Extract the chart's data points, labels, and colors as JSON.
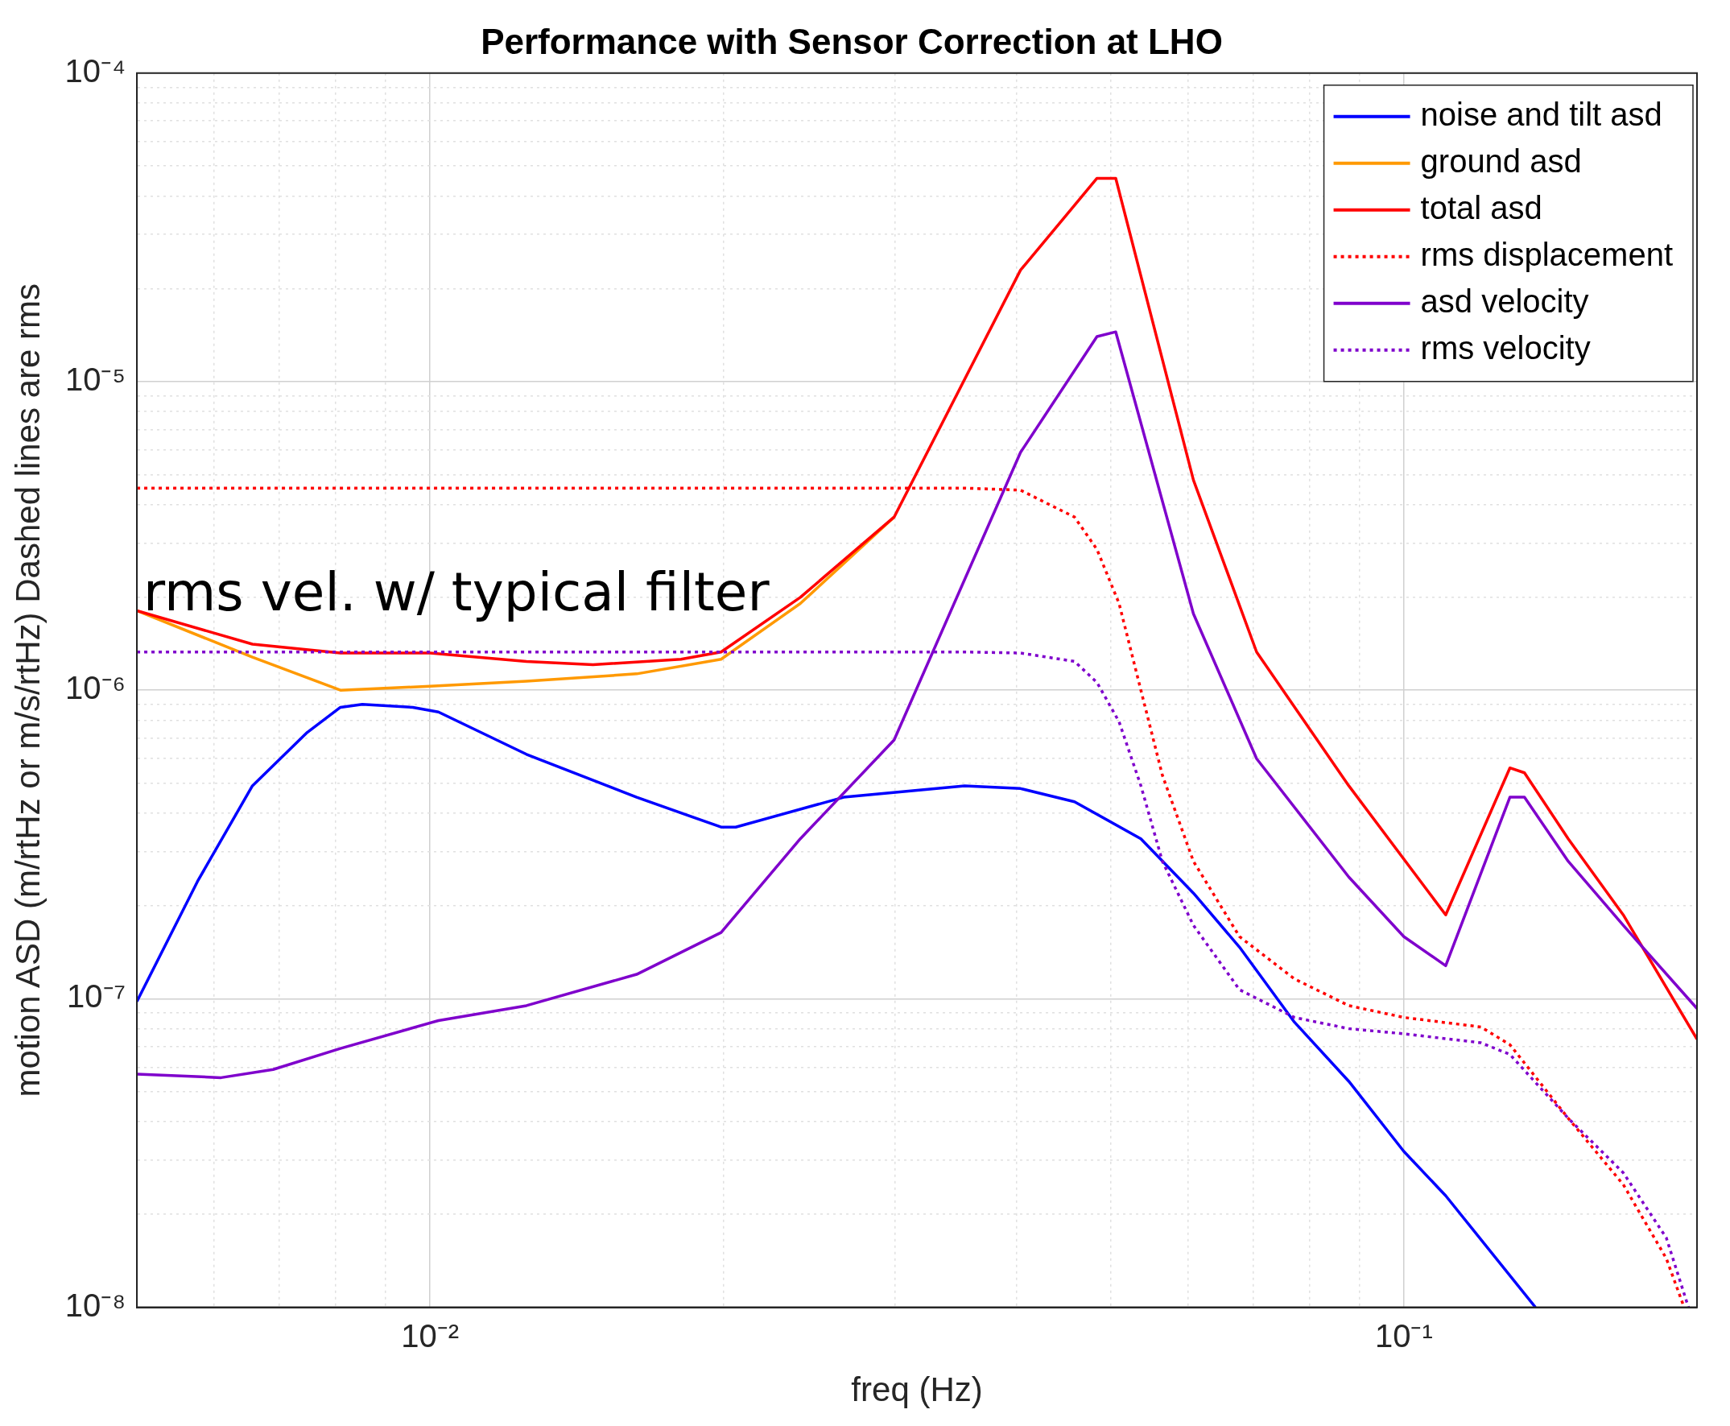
{
  "chart_data": {
    "type": "line",
    "title": "Performance with Sensor Correction at LHO",
    "xlabel": "freq (Hz)",
    "ylabel": "motion ASD (m/rtHz or m/s/rtHz) Dashed lines are rms",
    "annotations": [
      "rms vel. w/ typical filter"
    ],
    "log": "xy",
    "grid": true,
    "legend": "top right",
    "xlim": [
      0.005,
      0.2
    ],
    "ylim": [
      1e-08,
      0.0001
    ],
    "xticks": [
      {
        "value": 0.005,
        "label": null
      },
      {
        "value": 0.006,
        "label": null
      },
      {
        "value": 0.007,
        "label": null
      },
      {
        "value": 0.008,
        "label": null
      },
      {
        "value": 0.009,
        "label": null
      },
      {
        "value": 0.01,
        "label": "10⁻²"
      },
      {
        "value": 0.02,
        "label": null
      },
      {
        "value": 0.03,
        "label": null
      },
      {
        "value": 0.04,
        "label": null
      },
      {
        "value": 0.05,
        "label": null
      },
      {
        "value": 0.06,
        "label": null
      },
      {
        "value": 0.07,
        "label": null
      },
      {
        "value": 0.08,
        "label": null
      },
      {
        "value": 0.09,
        "label": null
      },
      {
        "value": 0.1,
        "label": "10⁻¹"
      },
      {
        "value": 0.2,
        "label": null
      }
    ],
    "yticks": [
      {
        "value": 1e-08,
        "label": "10⁻⁸"
      },
      {
        "value": 2e-08,
        "label": null
      },
      {
        "value": 3e-08,
        "label": null
      },
      {
        "value": 4e-08,
        "label": null
      },
      {
        "value": 5e-08,
        "label": null
      },
      {
        "value": 6e-08,
        "label": null
      },
      {
        "value": 7e-08,
        "label": null
      },
      {
        "value": 8e-08,
        "label": null
      },
      {
        "value": 9e-08,
        "label": null
      },
      {
        "value": 1e-07,
        "label": "10⁻⁷"
      },
      {
        "value": 2e-07,
        "label": null
      },
      {
        "value": 3e-07,
        "label": null
      },
      {
        "value": 4e-07,
        "label": null
      },
      {
        "value": 5e-07,
        "label": null
      },
      {
        "value": 6e-07,
        "label": null
      },
      {
        "value": 7e-07,
        "label": null
      },
      {
        "value": 8e-07,
        "label": null
      },
      {
        "value": 9e-07,
        "label": null
      },
      {
        "value": 1e-06,
        "label": "10⁻⁶"
      },
      {
        "value": 2e-06,
        "label": null
      },
      {
        "value": 3e-06,
        "label": null
      },
      {
        "value": 4e-06,
        "label": null
      },
      {
        "value": 5e-06,
        "label": null
      },
      {
        "value": 6e-06,
        "label": null
      },
      {
        "value": 7e-06,
        "label": null
      },
      {
        "value": 8e-06,
        "label": null
      },
      {
        "value": 9e-06,
        "label": null
      },
      {
        "value": 1e-05,
        "label": "10⁻⁵"
      },
      {
        "value": 2e-05,
        "label": null
      },
      {
        "value": 3e-05,
        "label": null
      },
      {
        "value": 4e-05,
        "label": null
      },
      {
        "value": 5e-05,
        "label": null
      },
      {
        "value": 6e-05,
        "label": null
      },
      {
        "value": 7e-05,
        "label": null
      },
      {
        "value": 8e-05,
        "label": null
      },
      {
        "value": 9e-05,
        "label": null
      },
      {
        "value": 0.0001,
        "label": "10⁻⁴"
      }
    ],
    "series": [
      {
        "name": "noise and tilt asd",
        "color": "#0000ff",
        "line_style": "solid",
        "x": [
          0.005,
          0.00577,
          0.00657,
          0.00748,
          0.00809,
          0.00852,
          0.0096,
          0.0102,
          0.01256,
          0.0163,
          0.0199,
          0.0206,
          0.0266,
          0.0354,
          0.0404,
          0.0459,
          0.0537,
          0.0608,
          0.0678,
          0.0772,
          0.0878,
          0.1,
          0.1104,
          0.1365
        ],
        "values": [
          9.8e-08,
          2.4e-07,
          4.9e-07,
          7.3e-07,
          8.8e-07,
          9e-07,
          8.8e-07,
          8.5e-07,
          6.2e-07,
          4.5e-07,
          3.6e-07,
          3.6e-07,
          4.5e-07,
          4.9e-07,
          4.8e-07,
          4.35e-07,
          3.3e-07,
          2.2e-07,
          1.47e-07,
          8.4e-08,
          5.4e-08,
          3.2e-08,
          2.3e-08,
          1e-08
        ]
      },
      {
        "name": "ground asd",
        "color": "#ff9900",
        "line_style": "solid",
        "x": [
          0.005,
          0.00657,
          0.00809,
          0.01,
          0.01256,
          0.0163,
          0.0199,
          0.024,
          0.02996
        ],
        "values": [
          1.81e-06,
          1.28e-06,
          1e-06,
          1.03e-06,
          1.07e-06,
          1.13e-06,
          1.26e-06,
          1.91e-06,
          3.64e-06
        ]
      },
      {
        "name": "total asd",
        "color": "#ff0000",
        "line_style": "solid",
        "x": [
          0.005,
          0.00657,
          0.00809,
          0.01,
          0.01256,
          0.0147,
          0.0181,
          0.0199,
          0.024,
          0.02996,
          0.0404,
          0.0484,
          0.0506,
          0.0608,
          0.0706,
          0.0878,
          0.1104,
          0.1285,
          0.133,
          0.1475,
          0.168,
          0.2
        ],
        "values": [
          1.81e-06,
          1.41e-06,
          1.32e-06,
          1.32e-06,
          1.24e-06,
          1.21e-06,
          1.26e-06,
          1.33e-06,
          2e-06,
          3.64e-06,
          2.3e-05,
          4.56e-05,
          4.56e-05,
          4.8e-06,
          1.33e-06,
          4.9e-07,
          1.87e-07,
          5.6e-07,
          5.4e-07,
          3.3e-07,
          1.87e-07,
          7.4e-08
        ]
      },
      {
        "name": "rms displacement",
        "color": "#ff0000",
        "line_style": "dotted",
        "x": [
          0.005,
          0.01,
          0.02,
          0.0354,
          0.0404,
          0.0459,
          0.0484,
          0.051,
          0.0537,
          0.0565,
          0.0608,
          0.0678,
          0.0772,
          0.0878,
          0.1,
          0.12,
          0.1285,
          0.1475,
          0.168,
          0.186,
          0.194
        ],
        "values": [
          4.52e-06,
          4.52e-06,
          4.52e-06,
          4.52e-06,
          4.45e-06,
          3.64e-06,
          2.86e-06,
          1.91e-06,
          1e-06,
          5.3e-07,
          2.79e-07,
          1.59e-07,
          1.16e-07,
          9.5e-08,
          8.7e-08,
          8.1e-08,
          7.1e-08,
          4.1e-08,
          2.5e-08,
          1.44e-08,
          1e-08
        ]
      },
      {
        "name": "asd velocity",
        "color": "#7f00cc",
        "line_style": "solid",
        "x": [
          0.005,
          0.0061,
          0.0069,
          0.00809,
          0.0102,
          0.01256,
          0.0163,
          0.0199,
          0.024,
          0.02996,
          0.0404,
          0.0484,
          0.0506,
          0.0608,
          0.0706,
          0.0878,
          0.1,
          0.1104,
          0.1285,
          0.133,
          0.1475,
          0.168,
          0.2
        ],
        "values": [
          5.7e-08,
          5.55e-08,
          5.9e-08,
          6.9e-08,
          8.5e-08,
          9.5e-08,
          1.2e-07,
          1.64e-07,
          3.3e-07,
          6.9e-07,
          5.9e-06,
          1.4e-05,
          1.45e-05,
          1.77e-06,
          6e-07,
          2.48e-07,
          1.59e-07,
          1.28e-07,
          4.5e-07,
          4.5e-07,
          2.79e-07,
          1.73e-07,
          9.3e-08
        ]
      },
      {
        "name": "rms velocity",
        "color": "#7f00cc",
        "line_style": "dotted",
        "x": [
          0.005,
          0.01,
          0.02,
          0.0354,
          0.0404,
          0.0459,
          0.0484,
          0.051,
          0.0537,
          0.0565,
          0.0608,
          0.0678,
          0.0772,
          0.0878,
          0.1,
          0.12,
          0.1285,
          0.1475,
          0.168,
          0.186,
          0.196
        ],
        "values": [
          1.33e-06,
          1.33e-06,
          1.33e-06,
          1.33e-06,
          1.32e-06,
          1.24e-06,
          1.06e-06,
          7.9e-07,
          4.9e-07,
          2.79e-07,
          1.73e-07,
          1.07e-07,
          8.7e-08,
          8e-08,
          7.7e-08,
          7.2e-08,
          6.6e-08,
          4.1e-08,
          2.73e-08,
          1.68e-08,
          1e-08
        ]
      }
    ]
  }
}
